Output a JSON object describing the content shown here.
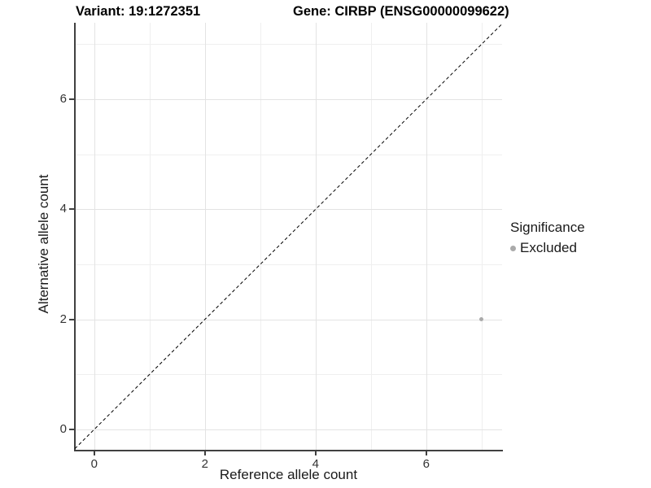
{
  "header": {
    "variant_title": "Variant: 19:1272351",
    "gene_title": "Gene: CIRBP (ENSG00000099622)"
  },
  "chart_data": {
    "type": "scatter",
    "xlabel": "Reference allele count",
    "ylabel": "Alternative allele count",
    "xlim": [
      -0.35,
      7.37
    ],
    "ylim": [
      -0.37,
      7.39
    ],
    "x_breaks": [
      0,
      2,
      4,
      6
    ],
    "y_breaks": [
      0,
      2,
      4,
      6
    ],
    "x_tick_labels": [
      "0",
      "2",
      "4",
      "6"
    ],
    "y_tick_labels": [
      "0",
      "2",
      "4",
      "6"
    ],
    "x_minor_breaks": [
      1,
      3,
      5,
      7
    ],
    "y_minor_breaks": [
      1,
      3,
      5,
      7
    ],
    "grid": true,
    "identity_line": {
      "equation": "y = x",
      "style": "dashed",
      "color": "#000000"
    },
    "points": [
      {
        "x": 7,
        "y": 2,
        "significance": "Excluded",
        "color": "#aaaaaa"
      }
    ],
    "legend": {
      "position": "right",
      "title": "Significance",
      "entries": [
        {
          "label": "Excluded",
          "color": "#aaaaaa"
        }
      ]
    }
  },
  "colors": {
    "background": "#ffffff",
    "axis_line": "#404040",
    "grid_major": "#e3e3e3",
    "grid_minor": "#efefef",
    "excluded_point": "#aaaaaa"
  }
}
